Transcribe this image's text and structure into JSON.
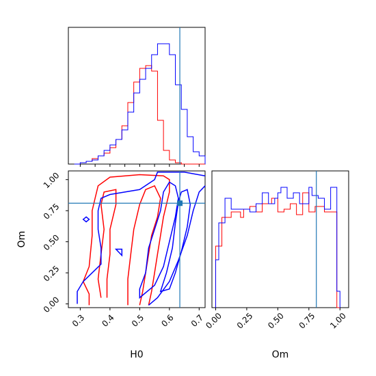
{
  "chart_data": {
    "type": "corner",
    "parameters": [
      "H0",
      "Om"
    ],
    "truth": {
      "H0": 0.635,
      "Om": 0.81
    },
    "series_colors": {
      "blue": "#0000ff",
      "red": "#ff0000",
      "truth": "#1f77b4"
    },
    "panels": {
      "h0_hist": {
        "xlim": [
          0.26,
          0.72
        ],
        "bins": [
          0.28,
          0.3,
          0.32,
          0.34,
          0.36,
          0.38,
          0.4,
          0.42,
          0.44,
          0.46,
          0.48,
          0.5,
          0.52,
          0.54,
          0.56,
          0.58,
          0.6,
          0.62,
          0.64,
          0.66,
          0.68,
          0.7,
          0.72
        ],
        "blue": [
          0.0,
          0.01,
          0.02,
          0.03,
          0.06,
          0.1,
          0.14,
          0.18,
          0.25,
          0.38,
          0.52,
          0.62,
          0.7,
          0.8,
          0.88,
          0.88,
          0.8,
          0.58,
          0.4,
          0.2,
          0.09,
          0.06
        ],
        "red": [
          0.0,
          0.01,
          0.02,
          0.04,
          0.06,
          0.08,
          0.12,
          0.18,
          0.28,
          0.45,
          0.6,
          0.7,
          0.72,
          0.68,
          0.32,
          0.1,
          0.03,
          0.01,
          0.0,
          0.0,
          0.0,
          0.0
        ]
      },
      "om_hist": {
        "xlim": [
          -0.03,
          1.07
        ],
        "xticks": [
          "0.00",
          "0.25",
          "0.50",
          "0.75",
          "1.00"
        ],
        "xtick_values": [
          0.0,
          0.25,
          0.5,
          0.75,
          1.0
        ],
        "bins": [
          0.0,
          0.025,
          0.05,
          0.075,
          0.1,
          0.125,
          0.15,
          0.175,
          0.2,
          0.225,
          0.25,
          0.275,
          0.3,
          0.325,
          0.35,
          0.375,
          0.4,
          0.425,
          0.45,
          0.475,
          0.5,
          0.525,
          0.55,
          0.575,
          0.6,
          0.625,
          0.65,
          0.675,
          0.7,
          0.725,
          0.75,
          0.775,
          0.8,
          0.825,
          0.85,
          0.875,
          0.9,
          0.925,
          0.95,
          0.975,
          1.0
        ],
        "blue": [
          0.35,
          0.62,
          0.62,
          0.8,
          0.8,
          0.72,
          0.72,
          0.72,
          0.72,
          0.72,
          0.72,
          0.7,
          0.7,
          0.76,
          0.76,
          0.84,
          0.84,
          0.76,
          0.76,
          0.8,
          0.84,
          0.88,
          0.88,
          0.8,
          0.8,
          0.84,
          0.84,
          0.76,
          0.76,
          0.76,
          0.88,
          0.82,
          0.82,
          0.8,
          0.8,
          0.72,
          0.72,
          0.88,
          0.88,
          0.12
        ],
        "red": [
          0.45,
          0.45,
          0.66,
          0.66,
          0.66,
          0.7,
          0.7,
          0.7,
          0.66,
          0.72,
          0.72,
          0.74,
          0.74,
          0.7,
          0.7,
          0.76,
          0.76,
          0.76,
          0.8,
          0.8,
          0.7,
          0.7,
          0.72,
          0.72,
          0.76,
          0.76,
          0.68,
          0.68,
          0.84,
          0.84,
          0.7,
          0.7,
          0.74,
          0.74,
          0.74,
          0.7,
          0.7,
          0.7,
          0.7,
          0.0
        ]
      },
      "joint": {
        "xlim": [
          0.26,
          0.72
        ],
        "ylim": [
          -0.03,
          1.07
        ],
        "xlabel": "H0",
        "ylabel": "Om",
        "xticks": [
          "0.3",
          "0.4",
          "0.5",
          "0.6",
          "0.7"
        ],
        "xtick_values": [
          0.3,
          0.4,
          0.5,
          0.6,
          0.7
        ],
        "yticks": [
          "0.00",
          "0.25",
          "0.50",
          "0.75",
          "1.00"
        ],
        "ytick_values": [
          0.0,
          0.25,
          0.5,
          0.75,
          1.0
        ]
      },
      "om_panel": {
        "xlabel": "Om"
      }
    }
  }
}
